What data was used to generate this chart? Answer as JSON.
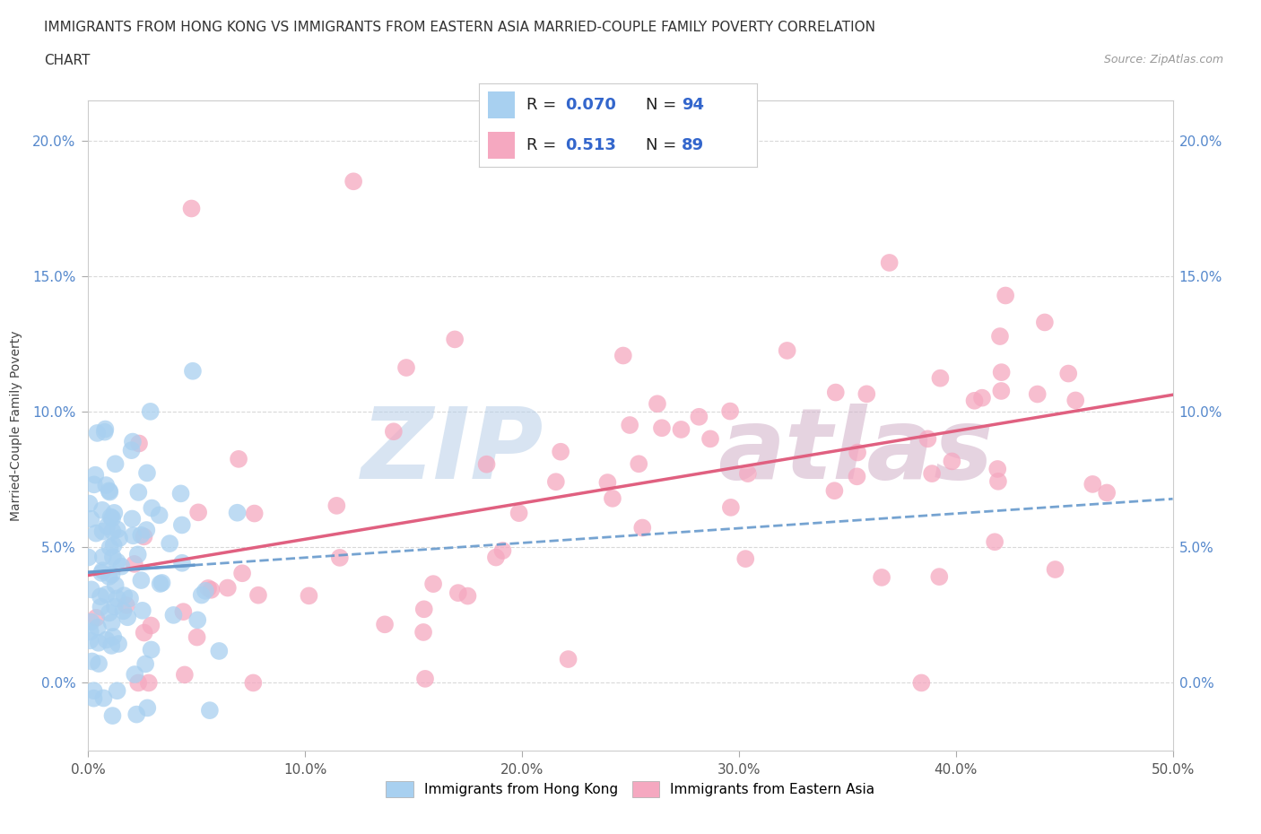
{
  "title_line1": "IMMIGRANTS FROM HONG KONG VS IMMIGRANTS FROM EASTERN ASIA MARRIED-COUPLE FAMILY POVERTY CORRELATION",
  "title_line2": "CHART",
  "source": "Source: ZipAtlas.com",
  "ylabel": "Married-Couple Family Poverty",
  "xlim": [
    0.0,
    0.5
  ],
  "ylim": [
    -0.025,
    0.215
  ],
  "xticks": [
    0.0,
    0.1,
    0.2,
    0.3,
    0.4,
    0.5
  ],
  "xticklabels": [
    "0.0%",
    "10.0%",
    "20.0%",
    "30.0%",
    "40.0%",
    "50.0%"
  ],
  "yticks": [
    0.0,
    0.05,
    0.1,
    0.15,
    0.2
  ],
  "yticklabels": [
    "0.0%",
    "5.0%",
    "10.0%",
    "15.0%",
    "20.0%"
  ],
  "hk_color": "#a8d0f0",
  "ea_color": "#f5a8c0",
  "hk_line_color": "#6699cc",
  "ea_line_color": "#e06080",
  "legend_R_color": "#3366cc",
  "watermark_zip": "ZIP",
  "watermark_atlas": "atlas",
  "background_color": "#ffffff",
  "grid_color": "#d0d0d0",
  "tick_color": "#5588cc",
  "title_color": "#333333",
  "source_color": "#999999"
}
